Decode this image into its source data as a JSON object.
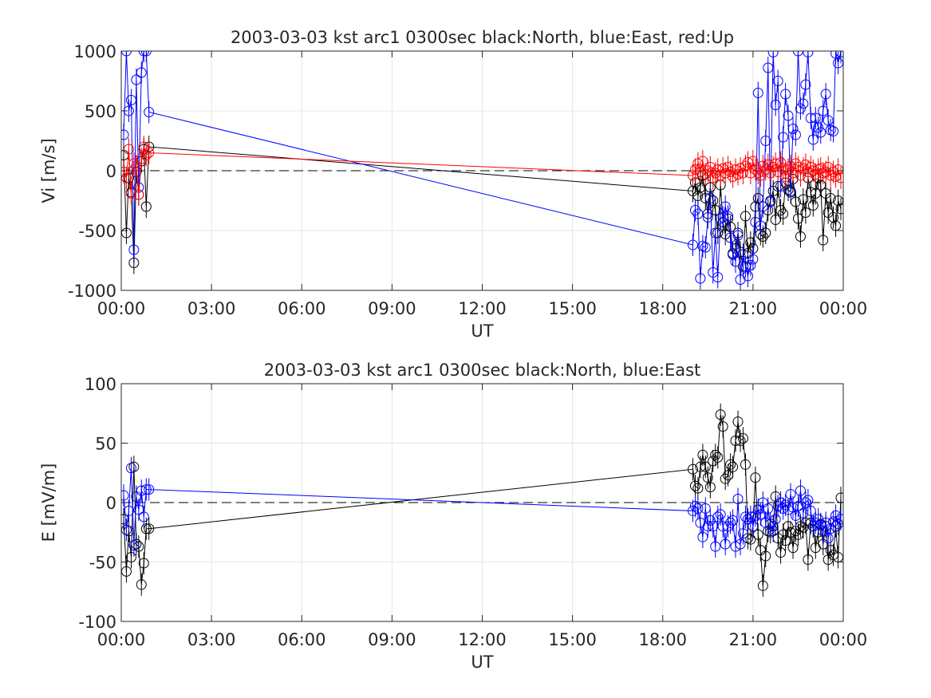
{
  "chart_data": [
    {
      "type": "line",
      "title": "2003-03-03 kst arc1 0300sec black:North, blue:East, red:Up",
      "xlabel": "UT",
      "ylabel": "Vi [m/s]",
      "xlim": [
        0,
        24
      ],
      "ylim": [
        -1000,
        1000
      ],
      "grid": true,
      "zero_line": true,
      "x_ticks": [
        "00:00",
        "03:00",
        "06:00",
        "09:00",
        "12:00",
        "15:00",
        "18:00",
        "21:00",
        "00:00"
      ],
      "y_ticks": [
        "-1000",
        "-500",
        "0",
        "500",
        "1000"
      ],
      "colors": {
        "North": "#000000",
        "East": "#0000ff",
        "Up": "#ff0000"
      },
      "series": [
        {
          "color": "#000000",
          "x": [
            0.08,
            0.17,
            0.25,
            0.33,
            0.42,
            0.5,
            0.58,
            0.67,
            0.75,
            0.83,
            0.92,
            19.0,
            19.08,
            19.17,
            19.25,
            19.33,
            19.42,
            19.5,
            19.58,
            19.67,
            19.75,
            19.83,
            19.92,
            20.0,
            20.08,
            20.17,
            20.25,
            20.33,
            20.42,
            20.5,
            20.58,
            20.67,
            20.75,
            20.83,
            20.92,
            21.0,
            21.08,
            21.17,
            21.25,
            21.33,
            21.42,
            21.5,
            21.58,
            21.67,
            21.75,
            21.83,
            21.92,
            22.0,
            22.08,
            22.17,
            22.25,
            22.33,
            22.42,
            22.5,
            22.58,
            22.67,
            22.75,
            22.83,
            22.92,
            23.0,
            23.08,
            23.17,
            23.25,
            23.33,
            23.42,
            23.5,
            23.58,
            23.67,
            23.75,
            23.83,
            23.92
          ],
          "y": [
            130,
            -520,
            -60,
            -180,
            -770,
            -10,
            -200,
            80,
            180,
            -300,
            200,
            -170,
            -100,
            -210,
            -140,
            -40,
            -230,
            -360,
            -140,
            -250,
            -330,
            -520,
            -120,
            -430,
            -530,
            -400,
            -470,
            -700,
            -650,
            -520,
            -680,
            -800,
            -380,
            -690,
            -600,
            -650,
            -300,
            -230,
            -530,
            -550,
            -520,
            -330,
            -250,
            -170,
            -410,
            -130,
            -330,
            -360,
            -100,
            -160,
            -180,
            -70,
            -260,
            -400,
            -550,
            -240,
            -350,
            -60,
            -180,
            -290,
            -190,
            -60,
            -120,
            -580,
            -190,
            -350,
            -230,
            -390,
            -460,
            -250,
            -320
          ]
        },
        {
          "color": "#0000ff",
          "x": [
            0.08,
            0.17,
            0.25,
            0.33,
            0.42,
            0.5,
            0.58,
            0.67,
            0.75,
            0.83,
            0.92,
            19.0,
            19.08,
            19.17,
            19.25,
            19.33,
            19.42,
            19.5,
            19.58,
            19.67,
            19.75,
            19.83,
            19.92,
            20.0,
            20.08,
            20.17,
            20.25,
            20.33,
            20.42,
            20.5,
            20.58,
            20.67,
            20.75,
            20.83,
            20.92,
            21.0,
            21.08,
            21.17,
            21.25,
            21.33,
            21.42,
            21.5,
            21.58,
            21.67,
            21.75,
            21.83,
            21.92,
            22.0,
            22.08,
            22.17,
            22.25,
            22.33,
            22.42,
            22.5,
            22.58,
            22.67,
            22.75,
            22.83,
            22.92,
            23.0,
            23.08,
            23.17,
            23.25,
            23.33,
            23.42,
            23.5,
            23.58,
            23.67,
            23.75,
            23.83,
            23.92
          ],
          "y": [
            300,
            1000,
            500,
            590,
            -660,
            760,
            -140,
            820,
            1000,
            1000,
            490,
            -620,
            -330,
            -360,
            -900,
            -630,
            -640,
            -390,
            -230,
            -850,
            -520,
            -890,
            -400,
            -390,
            -300,
            -380,
            -560,
            -690,
            -760,
            -540,
            -910,
            -700,
            -800,
            -880,
            -790,
            -740,
            -430,
            650,
            -460,
            -300,
            250,
            860,
            -260,
            990,
            550,
            750,
            -130,
            280,
            640,
            460,
            -170,
            350,
            300,
            1000,
            520,
            560,
            720,
            990,
            440,
            260,
            440,
            360,
            320,
            500,
            640,
            420,
            340,
            330,
            980,
            900,
            990
          ]
        },
        {
          "color": "#ff0000",
          "x": [
            0.08,
            0.17,
            0.25,
            0.33,
            0.42,
            0.5,
            0.58,
            0.67,
            0.75,
            0.83,
            0.92,
            19.0,
            19.08,
            19.17,
            19.25,
            19.33,
            19.42,
            19.5,
            19.58,
            19.67,
            19.75,
            19.83,
            19.92,
            20.0,
            20.08,
            20.17,
            20.25,
            20.33,
            20.42,
            20.5,
            20.58,
            20.67,
            20.75,
            20.83,
            20.92,
            21.0,
            21.08,
            21.17,
            21.25,
            21.33,
            21.42,
            21.5,
            21.58,
            21.67,
            21.75,
            21.83,
            21.92,
            22.0,
            22.08,
            22.17,
            22.25,
            22.33,
            22.42,
            22.5,
            22.58,
            22.67,
            22.75,
            22.83,
            22.92,
            23.0,
            23.08,
            23.17,
            23.25,
            23.33,
            23.42,
            23.5,
            23.58,
            23.67,
            23.75,
            23.83,
            23.92
          ],
          "y": [
            -10,
            -60,
            180,
            -190,
            60,
            40,
            -200,
            100,
            200,
            130,
            150,
            -40,
            10,
            60,
            -10,
            80,
            -30,
            0,
            30,
            -60,
            -20,
            10,
            -40,
            20,
            -20,
            30,
            -10,
            -50,
            10,
            -30,
            20,
            -20,
            40,
            70,
            -20,
            80,
            10,
            -20,
            -40,
            40,
            10,
            50,
            -20,
            30,
            60,
            -10,
            70,
            20,
            -50,
            10,
            40,
            -20,
            60,
            30,
            -40,
            20,
            50,
            -10,
            30,
            0,
            -30,
            10,
            20,
            -20,
            -10,
            30,
            -40,
            -10,
            -50,
            10,
            -60
          ]
        }
      ]
    },
    {
      "type": "line",
      "title": "2003-03-03 kst arc1 0300sec black:North, blue:East",
      "xlabel": "UT",
      "ylabel": "E [mV/m]",
      "xlim": [
        0,
        24
      ],
      "ylim": [
        -100,
        100
      ],
      "grid": true,
      "zero_line": true,
      "x_ticks": [
        "00:00",
        "03:00",
        "06:00",
        "09:00",
        "12:00",
        "15:00",
        "18:00",
        "21:00",
        "00:00"
      ],
      "y_ticks": [
        "-100",
        "-50",
        "0",
        "50",
        "100"
      ],
      "colors": {
        "North": "#000000",
        "East": "#0000ff"
      },
      "series": [
        {
          "color": "#000000",
          "x": [
            0.08,
            0.17,
            0.25,
            0.33,
            0.42,
            0.5,
            0.58,
            0.67,
            0.75,
            0.83,
            0.92,
            19.0,
            19.08,
            19.17,
            19.25,
            19.33,
            19.42,
            19.5,
            19.58,
            19.67,
            19.75,
            19.83,
            19.92,
            20.0,
            20.08,
            20.17,
            20.25,
            20.33,
            20.42,
            20.5,
            20.58,
            20.67,
            20.75,
            20.83,
            20.92,
            21.0,
            21.08,
            21.17,
            21.25,
            21.33,
            21.42,
            21.5,
            21.58,
            21.67,
            21.75,
            21.83,
            21.92,
            22.0,
            22.08,
            22.17,
            22.25,
            22.33,
            22.42,
            22.5,
            22.58,
            22.67,
            22.75,
            22.83,
            22.92,
            23.0,
            23.08,
            23.17,
            23.25,
            23.33,
            23.42,
            23.5,
            23.58,
            23.67,
            23.75,
            23.83,
            23.92
          ],
          "y": [
            -14,
            -58,
            -24,
            -46,
            30,
            -35,
            -37,
            -69,
            -51,
            -22,
            -22,
            28,
            14,
            12,
            30,
            40,
            30,
            21,
            13,
            35,
            40,
            38,
            74,
            64,
            20,
            23,
            32,
            30,
            52,
            68,
            52,
            54,
            32,
            -30,
            -31,
            -20,
            21,
            -27,
            -40,
            -70,
            -45,
            -24,
            -25,
            -20,
            5,
            -30,
            -42,
            -27,
            -32,
            -20,
            -25,
            -38,
            -24,
            -27,
            -20,
            -21,
            -17,
            -48,
            -17,
            -20,
            -38,
            -25,
            -18,
            -35,
            -20,
            -48,
            -40,
            -44,
            -20,
            -46,
            4
          ]
        },
        {
          "color": "#0000ff",
          "x": [
            0.08,
            0.17,
            0.25,
            0.33,
            0.42,
            0.5,
            0.58,
            0.67,
            0.75,
            0.83,
            0.92,
            19.0,
            19.08,
            19.17,
            19.25,
            19.33,
            19.42,
            19.5,
            19.58,
            19.67,
            19.75,
            19.83,
            19.92,
            20.0,
            20.08,
            20.17,
            20.25,
            20.33,
            20.42,
            20.5,
            20.58,
            20.67,
            20.75,
            20.83,
            20.92,
            21.0,
            21.08,
            21.17,
            21.25,
            21.33,
            21.42,
            21.5,
            21.58,
            21.67,
            21.75,
            21.83,
            21.92,
            22.0,
            22.08,
            22.17,
            22.25,
            22.33,
            22.42,
            22.5,
            22.58,
            22.67,
            22.75,
            22.83,
            22.92,
            23.0,
            23.08,
            23.17,
            23.25,
            23.33,
            23.42,
            23.5,
            23.58,
            23.67,
            23.75,
            23.83,
            23.92
          ],
          "y": [
            6,
            -23,
            -7,
            29,
            -36,
            5,
            -6,
            10,
            -12,
            11,
            11,
            -7,
            -3,
            -5,
            -17,
            -29,
            -5,
            -20,
            -15,
            -20,
            -37,
            -12,
            -10,
            -20,
            -35,
            -20,
            -17,
            -15,
            -37,
            3,
            -35,
            -26,
            -12,
            -14,
            -12,
            -20,
            -11,
            -6,
            -10,
            0,
            -17,
            -5,
            -18,
            -24,
            -14,
            -3,
            0,
            -5,
            -2,
            -6,
            7,
            -4,
            -11,
            -3,
            10,
            -9,
            0,
            2,
            -7,
            -20,
            -17,
            -14,
            -19,
            -24,
            -17,
            -30,
            -22,
            -16,
            -11,
            -18,
            -14
          ]
        }
      ]
    }
  ]
}
